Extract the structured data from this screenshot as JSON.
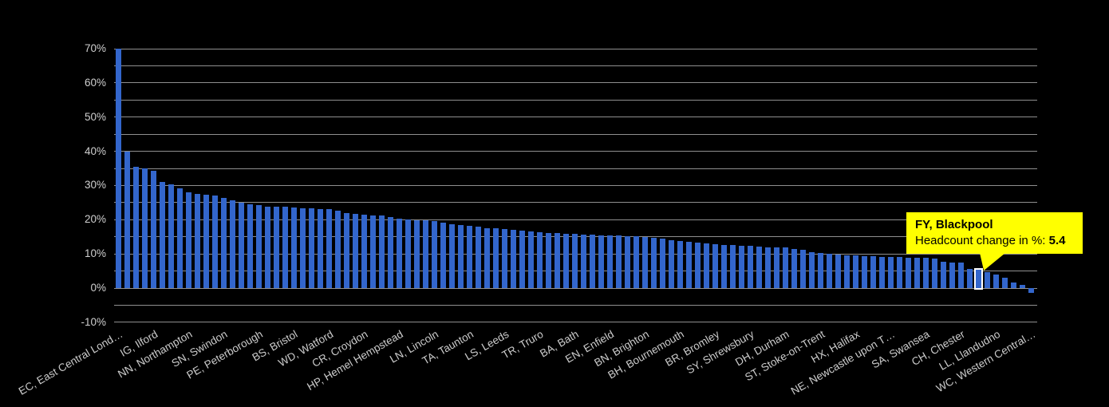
{
  "chart_data": {
    "type": "bar",
    "title": "",
    "series_name": "Headcount change in %",
    "unit": "%",
    "ylim": [
      -10,
      70
    ],
    "y_major_step": 10,
    "y_minor_step": 5,
    "grid": true,
    "legend_position": "none",
    "y_tick_labels": [
      "70%",
      "60%",
      "50%",
      "40%",
      "30%",
      "20%",
      "10%",
      "0%",
      "-10%"
    ],
    "x_labeled_every": 4,
    "x_tick_labels": [
      "EC, East Central Lond…",
      "IG, Ilford",
      "NN, Northampton",
      "SN, Swindon",
      "PE, Peterborough",
      "BS, Bristol",
      "WD, Watford",
      "CR, Croydon",
      "HP, Hemel Hempstead",
      "LN, Lincoln",
      "TA, Taunton",
      "LS, Leeds",
      "TR, Truro",
      "BA, Bath",
      "EN, Enfield",
      "BN, Brighton",
      "BH, Bournemouth",
      "BR, Bromley",
      "SY, Shrewsbury",
      "DH, Durham",
      "ST, Stoke-on-Trent",
      "HX, Halifax",
      "NE, Newcastle upon T…",
      "SA, Swansea",
      "CH, Chester",
      "LL, Llandudno",
      "WC, Western Central…"
    ],
    "values": [
      70,
      40,
      35.4,
      35,
      34.2,
      31,
      30.4,
      29.2,
      28,
      27.5,
      27.2,
      27,
      26.3,
      25.7,
      25,
      24.4,
      24.2,
      23.9,
      23.8,
      23.7,
      23.6,
      23.4,
      23.3,
      23.1,
      23,
      22.6,
      21.9,
      21.8,
      21.5,
      21.3,
      21.2,
      20.8,
      20.3,
      20.1,
      19.9,
      19.8,
      19.7,
      19.1,
      18.7,
      18.4,
      18.1,
      17.9,
      17.6,
      17.5,
      17.2,
      17,
      16.8,
      16.6,
      16.4,
      16.1,
      16,
      15.9,
      15.8,
      15.7,
      15.6,
      15.5,
      15.4,
      15.3,
      15.2,
      15.1,
      15,
      14.7,
      14.4,
      14,
      13.7,
      13.5,
      13.2,
      13,
      12.8,
      12.6,
      12.5,
      12.4,
      12.3,
      12.1,
      12,
      11.9,
      11.8,
      11.5,
      11.1,
      10.5,
      10.2,
      10,
      9.7,
      9.6,
      9.6,
      9.4,
      9.4,
      9.2,
      9.2,
      9.2,
      8.9,
      8.8,
      8.8,
      8.6,
      7.8,
      7.5,
      7.5,
      5.5,
      5.4,
      4.7,
      4,
      3,
      1.6,
      1,
      -1.3
    ],
    "highlight": {
      "index": 98,
      "label": "FY, Blackpool",
      "value": 5.4
    }
  },
  "tooltip": {
    "title": "FY, Blackpool",
    "label": "Headcount change in %: ",
    "value": "5.4"
  },
  "colors": {
    "background": "#000000",
    "bar": "#3366cc",
    "highlight_stroke": "#ffffff",
    "gridline": "#8f8f8f",
    "axis_text": "#cccccc",
    "tooltip_bg": "#ffff00",
    "tooltip_text": "#000000"
  }
}
